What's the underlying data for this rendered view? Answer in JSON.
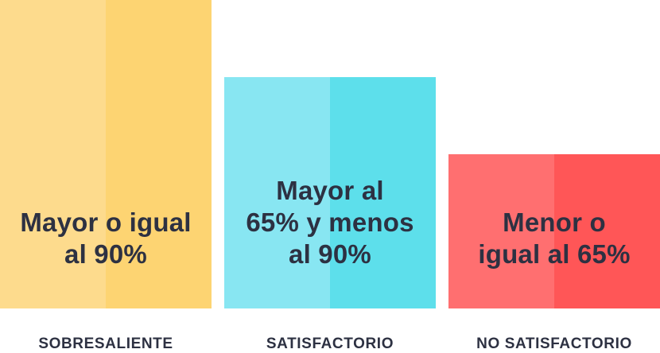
{
  "chart_data": {
    "type": "bar",
    "categories": [
      "SOBRESALIENTE",
      "SATISFACTORIO",
      "NO SATISFACTORIO"
    ],
    "values": [
      100,
      75,
      50
    ],
    "bar_labels": [
      [
        "Mayor o igual",
        "al 90%"
      ],
      [
        "Mayor al",
        "65% y menos",
        "al 90%"
      ],
      [
        "Menor o",
        "igual al 65%"
      ]
    ],
    "title": "",
    "xlabel": "",
    "ylabel": "",
    "ylim": [
      0,
      100
    ],
    "grid": false,
    "colors": [
      {
        "light": "#fddb8d",
        "dark": "#fdd472"
      },
      {
        "light": "#88e6f2",
        "dark": "#5ddfeb"
      },
      {
        "light": "#ff6f70",
        "dark": "#ff5657"
      }
    ],
    "label_color": "#2d3142"
  }
}
